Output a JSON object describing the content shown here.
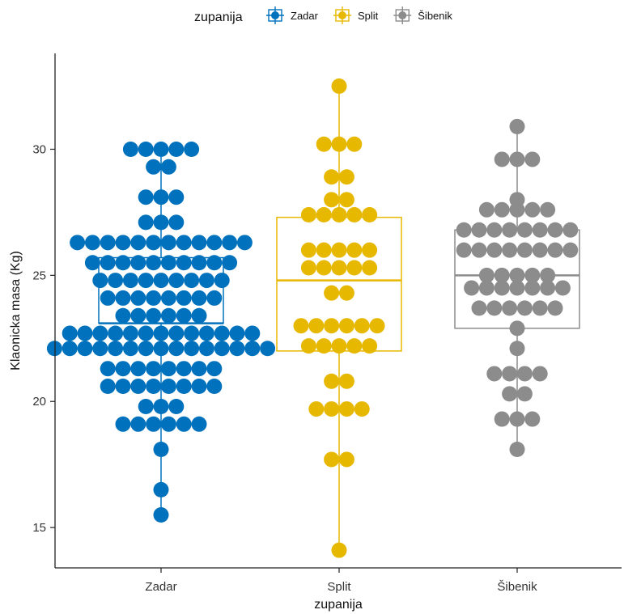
{
  "chart_data": {
    "type": "scatter",
    "subtype": "boxplot-with-dotplot",
    "xlabel": "zupanija",
    "ylabel": "Klaonicka masa (Kg)",
    "ylim": [
      13.4,
      33.8
    ],
    "yticks": [
      15,
      20,
      25,
      30
    ],
    "grid": false,
    "legend": {
      "title": "zupanija",
      "placement": "top"
    },
    "categories": [
      "Zadar",
      "Split",
      "Šibenik"
    ],
    "series": [
      {
        "name": "Zadar",
        "color": "#0072BD",
        "box": {
          "q1": 23.1,
          "median": 23.1,
          "q3": 25.7,
          "whisker_low": 15.5,
          "whisker_high": 30.0
        },
        "dots": [
          {
            "y": 30.0,
            "n": 5
          },
          {
            "y": 29.3,
            "n": 2
          },
          {
            "y": 28.1,
            "n": 3
          },
          {
            "y": 27.1,
            "n": 3
          },
          {
            "y": 26.3,
            "n": 12
          },
          {
            "y": 25.5,
            "n": 10
          },
          {
            "y": 24.8,
            "n": 9
          },
          {
            "y": 24.1,
            "n": 8
          },
          {
            "y": 23.4,
            "n": 6
          },
          {
            "y": 22.7,
            "n": 13
          },
          {
            "y": 22.1,
            "n": 15
          },
          {
            "y": 21.3,
            "n": 8
          },
          {
            "y": 20.6,
            "n": 8
          },
          {
            "y": 19.8,
            "n": 3
          },
          {
            "y": 19.1,
            "n": 6
          },
          {
            "y": 18.1,
            "n": 1
          },
          {
            "y": 16.5,
            "n": 1
          },
          {
            "y": 15.5,
            "n": 1
          }
        ]
      },
      {
        "name": "Split",
        "color": "#E7B800",
        "box": {
          "q1": 22.0,
          "median": 24.8,
          "q3": 27.3,
          "whisker_low": 14.1,
          "whisker_high": 32.5
        },
        "dots": [
          {
            "y": 32.5,
            "n": 1
          },
          {
            "y": 30.2,
            "n": 3
          },
          {
            "y": 28.9,
            "n": 2
          },
          {
            "y": 28.0,
            "n": 2
          },
          {
            "y": 27.4,
            "n": 5
          },
          {
            "y": 26.0,
            "n": 5
          },
          {
            "y": 25.3,
            "n": 5
          },
          {
            "y": 24.3,
            "n": 2
          },
          {
            "y": 23.0,
            "n": 6
          },
          {
            "y": 22.2,
            "n": 5
          },
          {
            "y": 20.8,
            "n": 2
          },
          {
            "y": 19.7,
            "n": 4
          },
          {
            "y": 17.7,
            "n": 2
          },
          {
            "y": 14.1,
            "n": 1
          }
        ]
      },
      {
        "name": "Šibenik",
        "color": "#8C8C8C",
        "box": {
          "q1": 22.9,
          "median": 25.0,
          "q3": 26.8,
          "whisker_low": 18.1,
          "whisker_high": 30.9
        },
        "dots": [
          {
            "y": 30.9,
            "n": 1
          },
          {
            "y": 29.6,
            "n": 3
          },
          {
            "y": 28.0,
            "n": 1
          },
          {
            "y": 27.6,
            "n": 5
          },
          {
            "y": 26.8,
            "n": 8
          },
          {
            "y": 26.0,
            "n": 8
          },
          {
            "y": 25.0,
            "n": 5
          },
          {
            "y": 24.5,
            "n": 7
          },
          {
            "y": 23.7,
            "n": 6
          },
          {
            "y": 22.9,
            "n": 1
          },
          {
            "y": 22.1,
            "n": 1
          },
          {
            "y": 21.1,
            "n": 4
          },
          {
            "y": 20.3,
            "n": 2
          },
          {
            "y": 19.3,
            "n": 3
          },
          {
            "y": 18.1,
            "n": 1
          }
        ]
      }
    ]
  }
}
